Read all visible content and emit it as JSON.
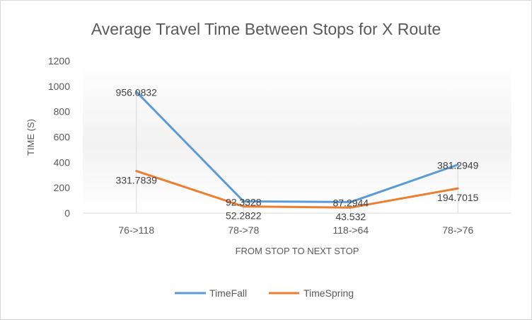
{
  "chart_data": {
    "type": "line",
    "title": "Average Travel Time Between Stops for X Route",
    "xlabel": "FROM STOP TO NEXT STOP",
    "ylabel": "TIME (S)",
    "categories": [
      "76->118",
      "78->78",
      "118->64",
      "78->76"
    ],
    "ylim": [
      0,
      1200
    ],
    "yticks": [
      0,
      200,
      400,
      600,
      800,
      1000,
      1200
    ],
    "grid": false,
    "legend_position": "bottom",
    "series": [
      {
        "name": "TimeFall",
        "color": "#5b9bd5",
        "values": [
          956.0832,
          92.3328,
          87.2944,
          381.2949
        ],
        "labels": [
          "956.0832",
          "92.3328",
          "87.2944",
          "381.2949"
        ]
      },
      {
        "name": "TimeSpring",
        "color": "#ed7d31",
        "values": [
          331.7839,
          52.2822,
          43.532,
          194.7015
        ],
        "labels": [
          "331.7839",
          "52.2822",
          "43.532",
          "194.7015"
        ]
      }
    ]
  }
}
